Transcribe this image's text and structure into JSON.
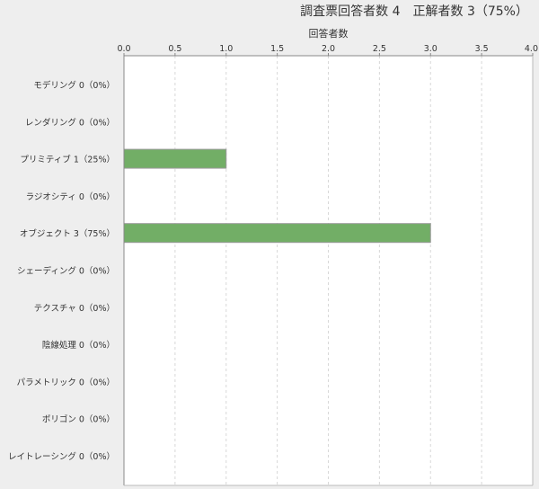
{
  "chart_data": {
    "type": "bar",
    "orientation": "horizontal",
    "title": "調査票回答者数 4　正解者数 3（75%）",
    "xlabel": "回答者数",
    "ylabel": "",
    "xlim": [
      0,
      4.0
    ],
    "xticks": [
      "0.0",
      "0.5",
      "1.0",
      "1.5",
      "2.0",
      "2.5",
      "3.0",
      "3.5",
      "4.0"
    ],
    "grid": true,
    "categories": [
      "モデリング 0（0%）",
      "レンダリング 0（0%）",
      "プリミティブ 1（25%）",
      "ラジオシティ 0（0%）",
      "オブジェクト 3（75%）",
      "シェーディング 0（0%）",
      "テクスチャ 0（0%）",
      "陰線処理 0（0%）",
      "パラメトリック 0（0%）",
      "ポリゴン 0（0%）",
      "レイトレーシング 0（0%）"
    ],
    "values": [
      0,
      0,
      1,
      0,
      3,
      0,
      0,
      0,
      0,
      0,
      0
    ],
    "bar_color": "#72ae66"
  }
}
